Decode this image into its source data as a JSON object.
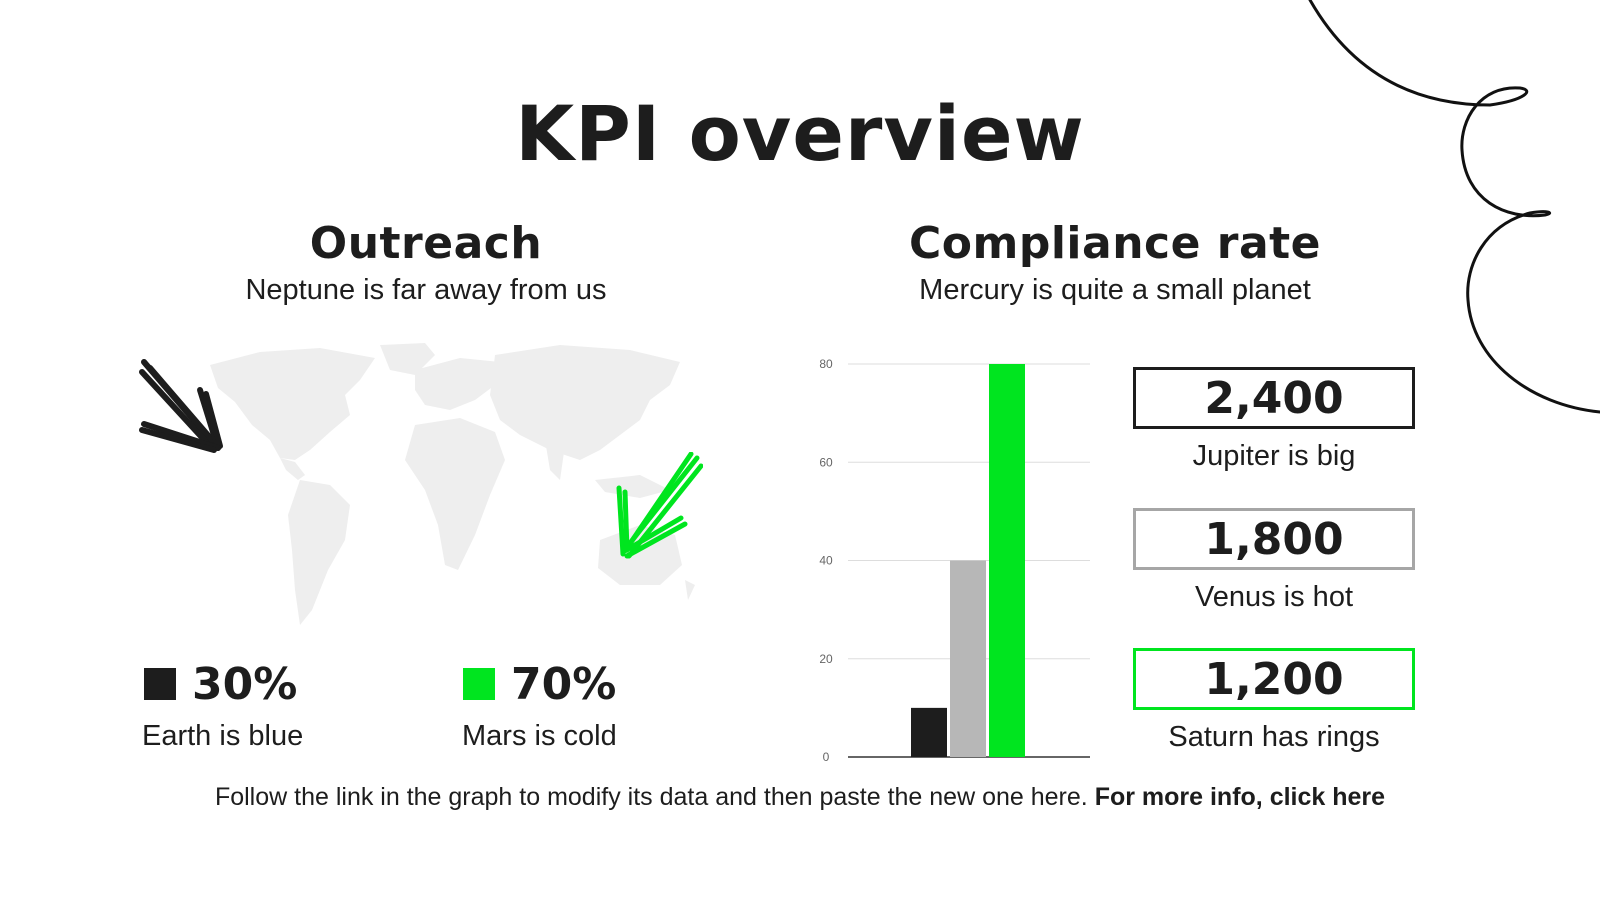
{
  "title": "KPI overview",
  "outreach": {
    "title": "Outreach",
    "subtitle": "Neptune is far away from us",
    "stats": [
      {
        "value": "30%",
        "label": "Earth is blue",
        "color": "#1d1d1d"
      },
      {
        "value": "70%",
        "label": "Mars is cold",
        "color": "#00e51f"
      }
    ]
  },
  "compliance": {
    "title": "Compliance rate",
    "subtitle": "Mercury is quite a small planet",
    "kpis": [
      {
        "value": "2,400",
        "label": "Jupiter is big",
        "border": "#1d1d1d"
      },
      {
        "value": "1,800",
        "label": "Venus is hot",
        "border": "#a6a6a6"
      },
      {
        "value": "1,200",
        "label": "Saturn has rings",
        "border": "#00e51f"
      }
    ]
  },
  "chart_data": {
    "type": "bar",
    "categories": [
      "",
      "",
      ""
    ],
    "values": [
      10,
      40,
      80
    ],
    "colors": [
      "#1d1d1d",
      "#b7b7b7",
      "#00e51f"
    ],
    "yticks": [
      0,
      20,
      40,
      60,
      80
    ],
    "ylim": [
      0,
      80
    ],
    "grid": true
  },
  "footer": {
    "text": "Follow the link in the graph to modify its data and then paste the new one here.",
    "link": "For more info, click here"
  },
  "icons": {
    "map": "world-map-icon",
    "arrow_left": "arrow-down-right-icon",
    "arrow_right": "arrow-down-left-icon"
  }
}
